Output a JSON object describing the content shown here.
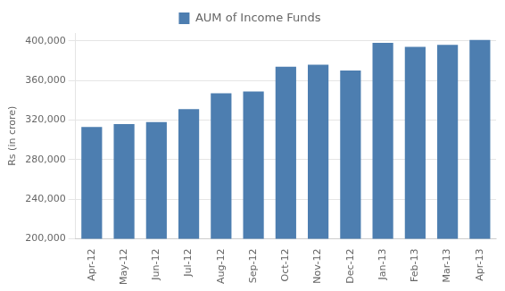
{
  "chart_data": {
    "type": "bar",
    "categories": [
      "Apr-12",
      "May-12",
      "Jun-12",
      "Jul-12",
      "Aug-12",
      "Sep-12",
      "Oct-12",
      "Nov-12",
      "Dec-12",
      "Jan-13",
      "Feb-13",
      "Mar-13",
      "Apr-13"
    ],
    "series": [
      {
        "name": "AUM of Income Funds",
        "color": "#4d7eb0",
        "values": [
          313000,
          316000,
          318000,
          331000,
          347000,
          349000,
          374000,
          376000,
          370000,
          398000,
          394000,
          396000,
          401000
        ]
      }
    ],
    "ylabel": "Rs (in crore)",
    "ylim": [
      200000,
      408000
    ],
    "yticks": [
      {
        "value": 200000,
        "label": "200,000"
      },
      {
        "value": 240000,
        "label": "240,000"
      },
      {
        "value": 280000,
        "label": "280,000"
      },
      {
        "value": 320000,
        "label": "320,000"
      },
      {
        "value": 360000,
        "label": "360,000"
      },
      {
        "value": 400000,
        "label": "400,000"
      }
    ],
    "grid": true,
    "legend": "top"
  }
}
